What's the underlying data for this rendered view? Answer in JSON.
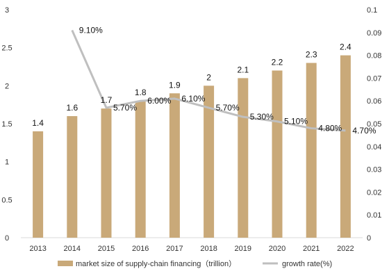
{
  "chart_data": {
    "type": "bar",
    "categories": [
      "2013",
      "2014",
      "2015",
      "2016",
      "2017",
      "2018",
      "2019",
      "2020",
      "2021",
      "2022"
    ],
    "series": [
      {
        "name": "market size of supply-chain financing（trillion）",
        "type": "bar",
        "axis": "left",
        "color": "#C9A979",
        "values": [
          1.4,
          1.6,
          1.7,
          1.8,
          1.9,
          2,
          2.1,
          2.2,
          2.3,
          2.4
        ],
        "labels": [
          "1.4",
          "1.6",
          "1.7",
          "1.8",
          "1.9",
          "2",
          "2.1",
          "2.2",
          "2.3",
          "2.4"
        ]
      },
      {
        "name": "growth rate(%)",
        "type": "line",
        "axis": "right",
        "color": "#BFBFBF",
        "values": [
          null,
          0.091,
          0.057,
          0.06,
          0.061,
          0.057,
          0.053,
          0.051,
          0.048,
          0.047
        ],
        "labels": [
          "",
          "9.10%",
          "5.70%",
          "6.00%",
          "6.10%",
          "5.70%",
          "5.30%",
          "5.10%",
          "4.80%",
          "4.70%"
        ]
      }
    ],
    "left_axis": {
      "ylim": [
        0,
        3
      ],
      "ticks": [
        "0",
        "0.5",
        "1",
        "1.5",
        "2",
        "2.5",
        "3"
      ],
      "tick_values": [
        0,
        0.5,
        1,
        1.5,
        2,
        2.5,
        3
      ]
    },
    "right_axis": {
      "ylim": [
        0,
        0.1
      ],
      "ticks": [
        "0",
        "0.01",
        "0.02",
        "0.03",
        "0.04",
        "0.05",
        "0.06",
        "0.07",
        "0.08",
        "0.09",
        "0.1"
      ],
      "tick_values": [
        0,
        0.01,
        0.02,
        0.03,
        0.04,
        0.05,
        0.06,
        0.07,
        0.08,
        0.09,
        0.1
      ]
    },
    "grid": false,
    "legend": "bottom"
  }
}
